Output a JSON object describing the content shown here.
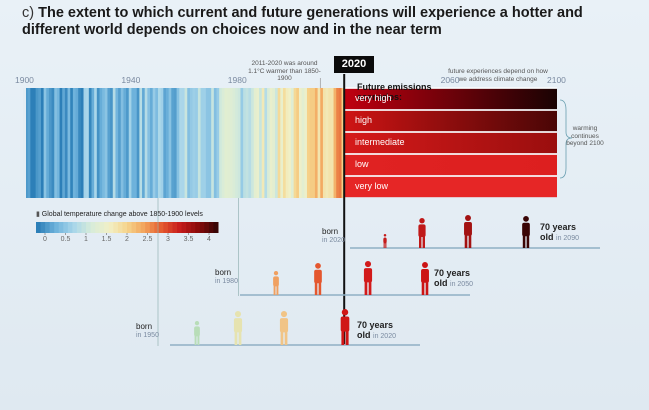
{
  "title": {
    "prefix": "c)",
    "text": "The extent to which current and future generations will experience a hotter and different world depends on choices now and in the near term"
  },
  "annotations": {
    "recent_warming": "2011-2020 was around 1.1°C warmer than 1850-1900",
    "future_experiences": "future experiences depend on how we address climate change",
    "warming_continues": "warming continues beyond 2100"
  },
  "year_marker": "2020",
  "future_emissions_label": "Future emissions scenarios:",
  "colorbar": {
    "title": "Global temperature change above 1850-1900 levels",
    "unit_icon": "°C",
    "ticks": [
      "0",
      "0.5",
      "1",
      "1.5",
      "2",
      "2.5",
      "3",
      "3.5",
      "4"
    ],
    "colors": [
      "#2c7fb8",
      "#6fb3dc",
      "#a9d6ea",
      "#d7ecd9",
      "#f1f0c6",
      "#f6d58d",
      "#f2a25a",
      "#e4572e",
      "#c51b1b",
      "#8b0a0a",
      "#3a0505"
    ]
  },
  "chart_data": {
    "type": "heatmap",
    "title": "The extent to which current and future generations will experience a hotter and different world depends on choices now and in the near term",
    "x_axis_ticks": [
      "1900",
      "1940",
      "1980",
      "2020",
      "2060",
      "2100"
    ],
    "xlim": [
      1900,
      2100
    ],
    "value_label": "Global temperature change above 1850-1900 levels",
    "color_range": [
      0,
      4
    ],
    "observed_period": [
      1900,
      2020
    ],
    "scenarios": [
      {
        "name": "very high",
        "color_start": "#c00010",
        "color_end": "#1a0303"
      },
      {
        "name": "high",
        "color_start": "#cf1414",
        "color_end": "#4a0606"
      },
      {
        "name": "intermediate",
        "color_start": "#d61a1a",
        "color_end": "#9a0e0e"
      },
      {
        "name": "low",
        "color_start": "#e02222",
        "color_end": "#dd1f1f"
      },
      {
        "name": "very low",
        "color_start": "#e62626",
        "color_end": "#e62626"
      }
    ]
  },
  "generations": [
    {
      "born_label": "born",
      "born_year": "in 2020",
      "age_label": "70 years",
      "old_label": "old",
      "age_year": "in 2090"
    },
    {
      "born_label": "born",
      "born_year": "in 1980",
      "age_label": "70 years",
      "old_label": "old",
      "age_year": "in 2050"
    },
    {
      "born_label": "born",
      "born_year": "in 1950",
      "age_label": "70 years",
      "old_label": "old",
      "age_year": "in 2020"
    }
  ]
}
